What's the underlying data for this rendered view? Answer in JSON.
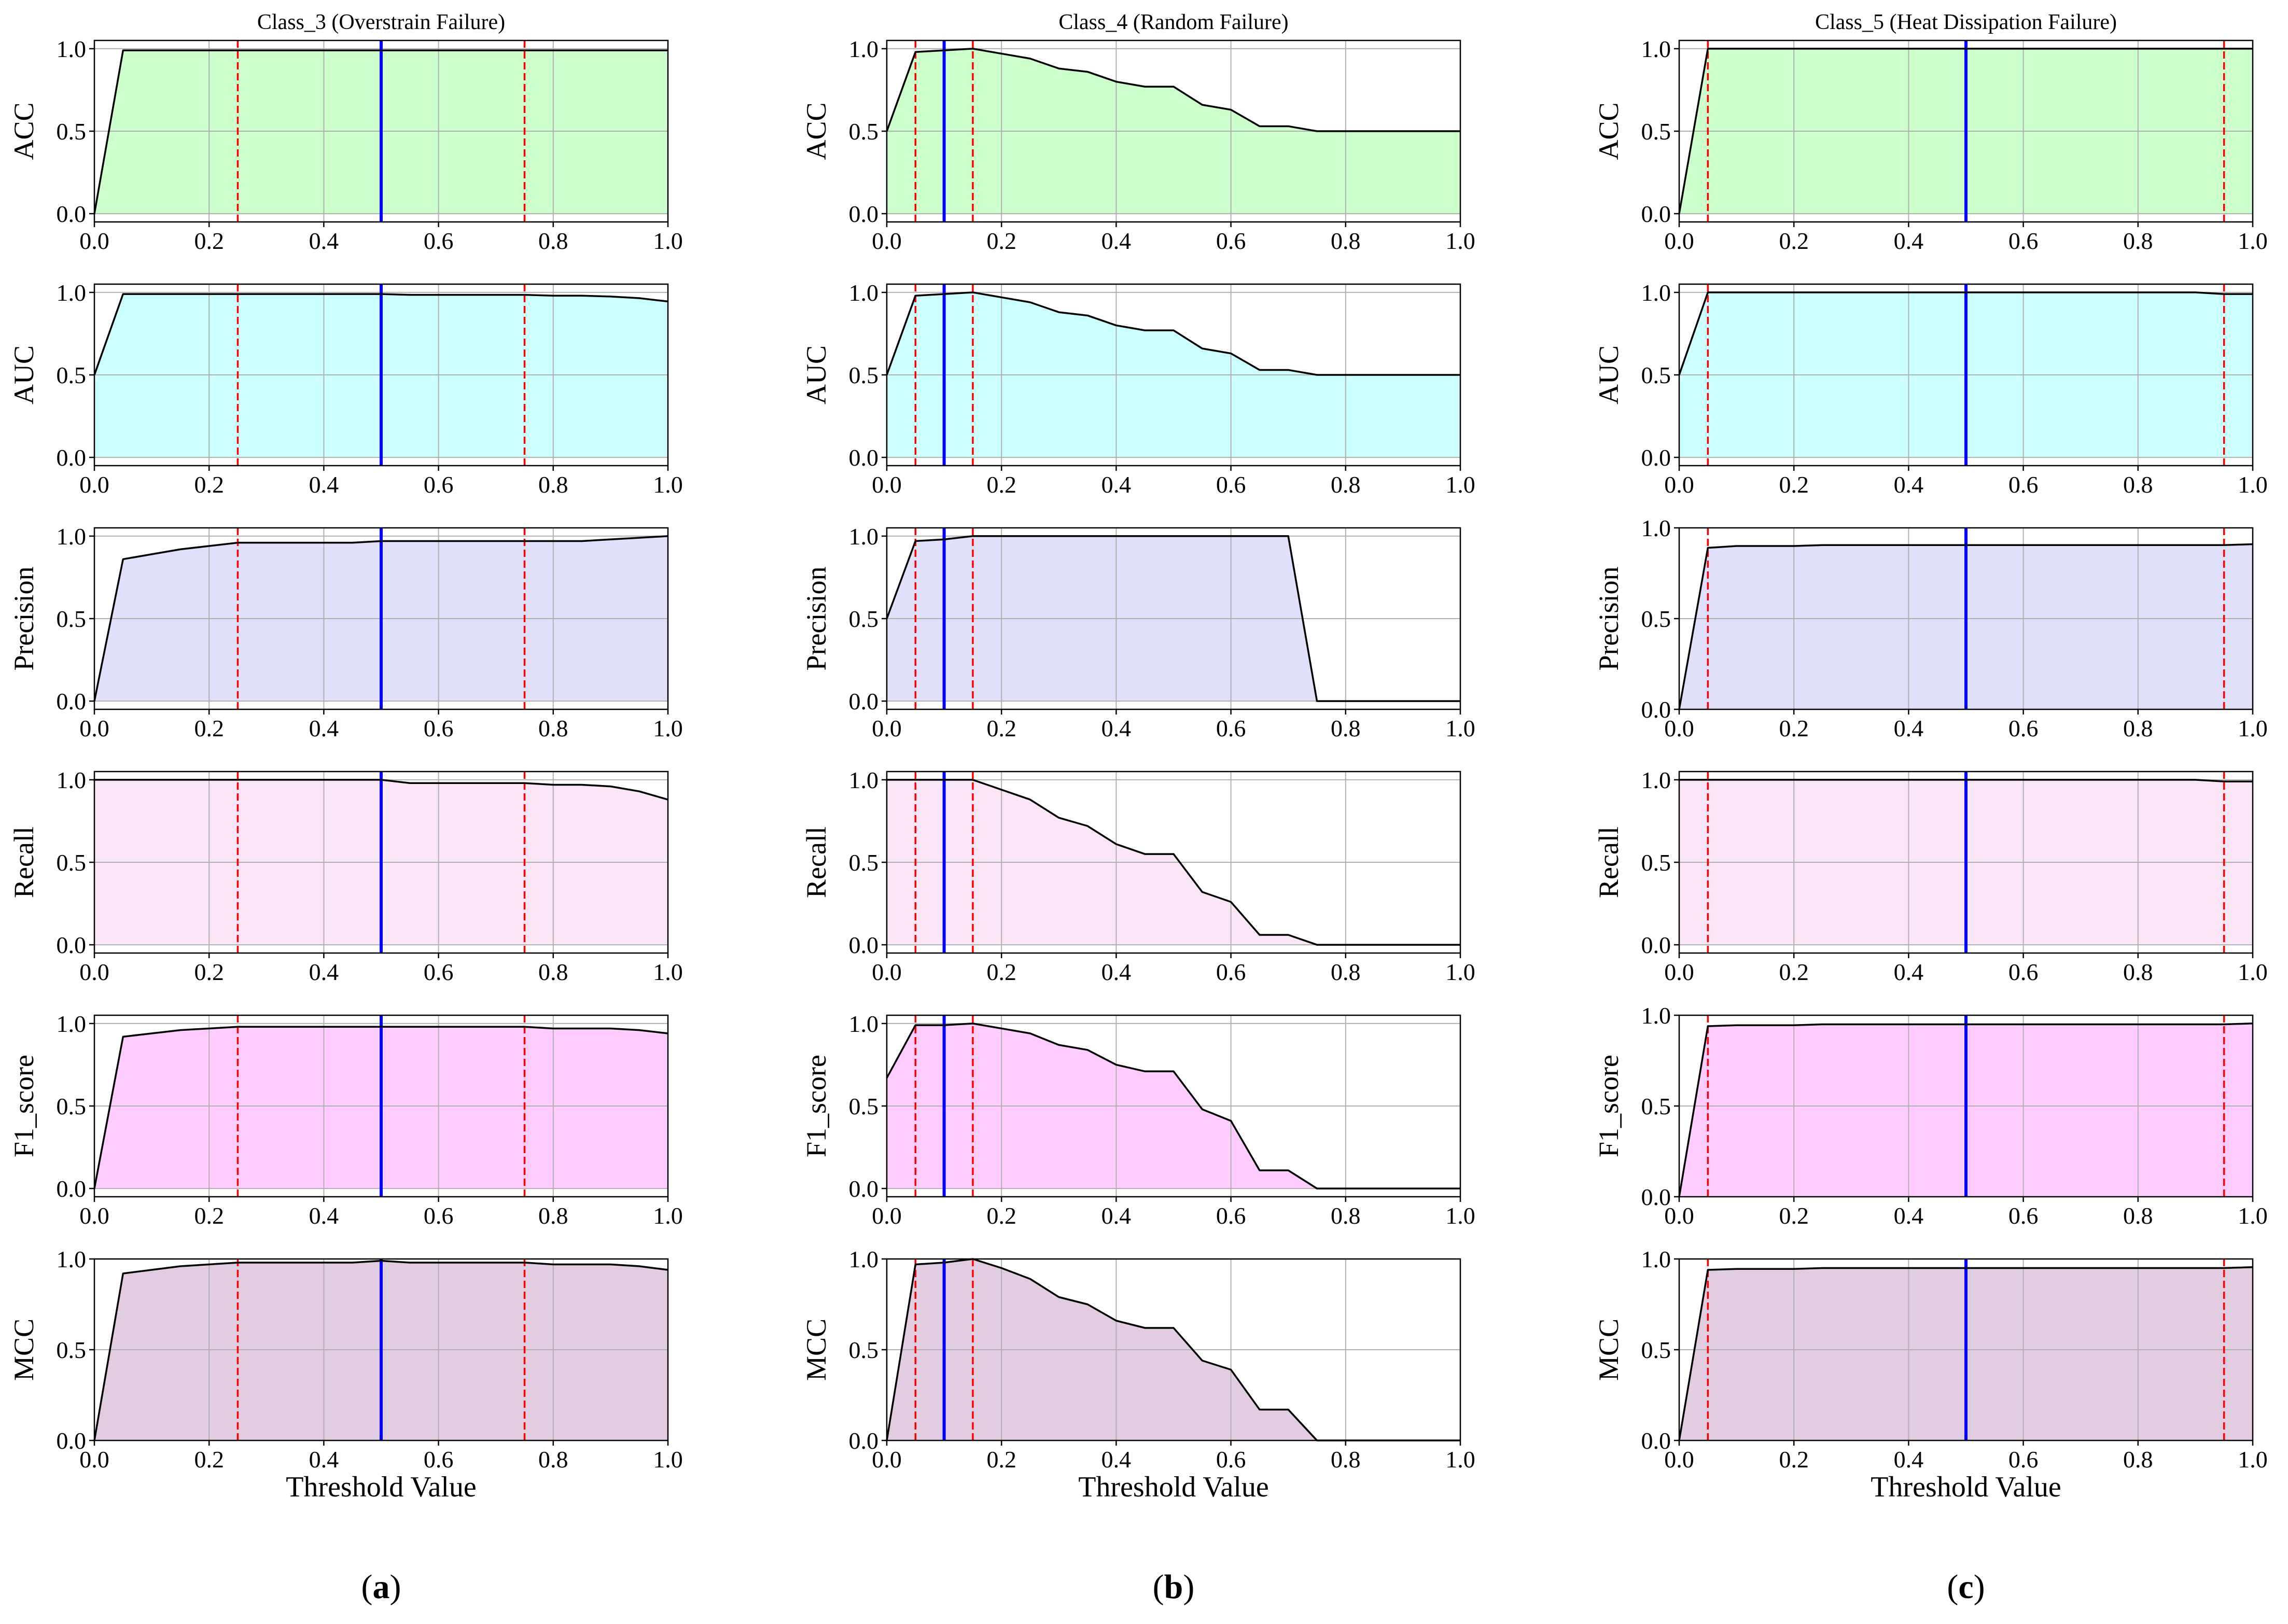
{
  "figure": {
    "xlabel": "Threshold Value",
    "panel_labels": [
      "(a)",
      "(b)",
      "(c)"
    ],
    "titles": [
      "Class_3 (Overstrain Failure)",
      "Class_4 (Random Failure)",
      "Class_5 (Heat Dissipation Failure)"
    ],
    "metrics": [
      "ACC",
      "AUC",
      "Precision",
      "Recall",
      "F1_score",
      "MCC"
    ]
  },
  "colors": {
    "ACC": "#ccffcc",
    "AUC": "#ccffff",
    "Precision": "#e0e0fa",
    "Recall": "#fbe6f7",
    "F1_score": "#ffccff",
    "MCC": "#e2cce2",
    "curve": "#000000",
    "best_threshold_line": "#0000ff",
    "range_line": "#ff0000",
    "grid": "#b0b0b0"
  },
  "chart_data": [
    {
      "type": "area",
      "title": "Class_3 (Overstrain Failure)",
      "xlabel": "Threshold Value",
      "x": [
        0,
        0.05,
        0.1,
        0.15,
        0.2,
        0.25,
        0.3,
        0.35,
        0.4,
        0.45,
        0.5,
        0.55,
        0.6,
        0.65,
        0.7,
        0.75,
        0.8,
        0.85,
        0.9,
        0.95,
        1.0
      ],
      "xlim": [
        0,
        1
      ],
      "xticks": [
        0.0,
        0.2,
        0.4,
        0.6,
        0.8,
        1.0
      ],
      "best_threshold": 0.5,
      "range_lines": [
        0.25,
        0.75
      ],
      "series": [
        {
          "name": "ACC",
          "ylim": [
            -0.05,
            1.05
          ],
          "yticks": [
            0.0,
            0.5,
            1.0
          ],
          "values": [
            0.0,
            0.99,
            0.99,
            0.99,
            0.99,
            0.99,
            0.99,
            0.99,
            0.99,
            0.99,
            0.99,
            0.99,
            0.99,
            0.99,
            0.99,
            0.99,
            0.99,
            0.99,
            0.99,
            0.99,
            0.99
          ]
        },
        {
          "name": "AUC",
          "ylim": [
            -0.05,
            1.05
          ],
          "yticks": [
            0.0,
            0.5,
            1.0
          ],
          "values": [
            0.5,
            0.99,
            0.99,
            0.99,
            0.99,
            0.99,
            0.99,
            0.99,
            0.99,
            0.99,
            0.99,
            0.985,
            0.985,
            0.985,
            0.985,
            0.985,
            0.98,
            0.98,
            0.975,
            0.965,
            0.945
          ]
        },
        {
          "name": "Precision",
          "ylim": [
            -0.05,
            1.05
          ],
          "yticks": [
            0.0,
            0.5,
            1.0
          ],
          "values": [
            0.0,
            0.86,
            0.89,
            0.92,
            0.94,
            0.96,
            0.96,
            0.96,
            0.96,
            0.96,
            0.97,
            0.97,
            0.97,
            0.97,
            0.97,
            0.97,
            0.97,
            0.97,
            0.98,
            0.99,
            1.0
          ]
        },
        {
          "name": "Recall",
          "ylim": [
            -0.05,
            1.05
          ],
          "yticks": [
            0.0,
            0.5,
            1.0
          ],
          "values": [
            1.0,
            1.0,
            1.0,
            1.0,
            1.0,
            1.0,
            1.0,
            1.0,
            1.0,
            1.0,
            1.0,
            0.98,
            0.98,
            0.98,
            0.98,
            0.98,
            0.97,
            0.97,
            0.96,
            0.93,
            0.88
          ]
        },
        {
          "name": "F1_score",
          "ylim": [
            -0.05,
            1.05
          ],
          "yticks": [
            0.0,
            0.5,
            1.0
          ],
          "values": [
            0.0,
            0.92,
            0.94,
            0.96,
            0.97,
            0.98,
            0.98,
            0.98,
            0.98,
            0.98,
            0.98,
            0.98,
            0.98,
            0.98,
            0.98,
            0.98,
            0.97,
            0.97,
            0.97,
            0.96,
            0.94
          ]
        },
        {
          "name": "MCC",
          "ylim": [
            0.0,
            1.0
          ],
          "yticks": [
            0.0,
            0.5,
            1.0
          ],
          "values": [
            0.0,
            0.92,
            0.94,
            0.96,
            0.97,
            0.98,
            0.98,
            0.98,
            0.98,
            0.98,
            0.99,
            0.98,
            0.98,
            0.98,
            0.98,
            0.98,
            0.97,
            0.97,
            0.97,
            0.96,
            0.94
          ]
        }
      ]
    },
    {
      "type": "area",
      "title": "Class_4 (Random Failure)",
      "xlabel": "Threshold Value",
      "x": [
        0,
        0.05,
        0.1,
        0.15,
        0.2,
        0.25,
        0.3,
        0.35,
        0.4,
        0.45,
        0.5,
        0.55,
        0.6,
        0.65,
        0.7,
        0.75,
        0.8,
        0.85,
        0.9,
        0.95,
        1.0
      ],
      "xlim": [
        0,
        1
      ],
      "xticks": [
        0.0,
        0.2,
        0.4,
        0.6,
        0.8,
        1.0
      ],
      "best_threshold": 0.1,
      "range_lines": [
        0.05,
        0.15
      ],
      "series": [
        {
          "name": "ACC",
          "ylim": [
            -0.05,
            1.05
          ],
          "yticks": [
            0.0,
            0.5,
            1.0
          ],
          "values": [
            0.5,
            0.98,
            0.99,
            1.0,
            0.97,
            0.94,
            0.88,
            0.86,
            0.8,
            0.77,
            0.77,
            0.66,
            0.63,
            0.53,
            0.53,
            0.5,
            0.5,
            0.5,
            0.5,
            0.5,
            0.5
          ]
        },
        {
          "name": "AUC",
          "ylim": [
            -0.05,
            1.05
          ],
          "yticks": [
            0.0,
            0.5,
            1.0
          ],
          "values": [
            0.5,
            0.98,
            0.99,
            1.0,
            0.97,
            0.94,
            0.88,
            0.86,
            0.8,
            0.77,
            0.77,
            0.66,
            0.63,
            0.53,
            0.53,
            0.5,
            0.5,
            0.5,
            0.5,
            0.5,
            0.5
          ]
        },
        {
          "name": "Precision",
          "ylim": [
            -0.05,
            1.05
          ],
          "yticks": [
            0.0,
            0.5,
            1.0
          ],
          "values": [
            0.5,
            0.97,
            0.98,
            1.0,
            1.0,
            1.0,
            1.0,
            1.0,
            1.0,
            1.0,
            1.0,
            1.0,
            1.0,
            1.0,
            1.0,
            0.0,
            0.0,
            0.0,
            0.0,
            0.0,
            0.0
          ]
        },
        {
          "name": "Recall",
          "ylim": [
            -0.05,
            1.05
          ],
          "yticks": [
            0.0,
            0.5,
            1.0
          ],
          "values": [
            1.0,
            1.0,
            1.0,
            1.0,
            0.94,
            0.88,
            0.77,
            0.72,
            0.61,
            0.55,
            0.55,
            0.32,
            0.26,
            0.06,
            0.06,
            0.0,
            0.0,
            0.0,
            0.0,
            0.0,
            0.0
          ]
        },
        {
          "name": "F1_score",
          "ylim": [
            -0.05,
            1.05
          ],
          "yticks": [
            0.0,
            0.5,
            1.0
          ],
          "values": [
            0.67,
            0.99,
            0.99,
            1.0,
            0.97,
            0.94,
            0.87,
            0.84,
            0.75,
            0.71,
            0.71,
            0.48,
            0.41,
            0.11,
            0.11,
            0.0,
            0.0,
            0.0,
            0.0,
            0.0,
            0.0
          ]
        },
        {
          "name": "MCC",
          "ylim": [
            0.0,
            1.0
          ],
          "yticks": [
            0.0,
            0.5,
            1.0
          ],
          "values": [
            0.0,
            0.97,
            0.98,
            1.0,
            0.95,
            0.89,
            0.79,
            0.75,
            0.66,
            0.62,
            0.62,
            0.44,
            0.39,
            0.17,
            0.17,
            0.0,
            0.0,
            0.0,
            0.0,
            0.0,
            0.0
          ]
        }
      ]
    },
    {
      "type": "area",
      "title": "Class_5 (Heat Dissipation Failure)",
      "xlabel": "Threshold Value",
      "x": [
        0,
        0.05,
        0.1,
        0.15,
        0.2,
        0.25,
        0.3,
        0.35,
        0.4,
        0.45,
        0.5,
        0.55,
        0.6,
        0.65,
        0.7,
        0.75,
        0.8,
        0.85,
        0.9,
        0.95,
        1.0
      ],
      "xlim": [
        0,
        1
      ],
      "xticks": [
        0.0,
        0.2,
        0.4,
        0.6,
        0.8,
        1.0
      ],
      "best_threshold": 0.5,
      "range_lines": [
        0.05,
        0.95
      ],
      "series": [
        {
          "name": "ACC",
          "ylim": [
            -0.05,
            1.05
          ],
          "yticks": [
            0.0,
            0.5,
            1.0
          ],
          "values": [
            0.0,
            1.0,
            1.0,
            1.0,
            1.0,
            1.0,
            1.0,
            1.0,
            1.0,
            1.0,
            1.0,
            1.0,
            1.0,
            1.0,
            1.0,
            1.0,
            1.0,
            1.0,
            1.0,
            1.0,
            1.0
          ]
        },
        {
          "name": "AUC",
          "ylim": [
            -0.05,
            1.05
          ],
          "yticks": [
            0.0,
            0.5,
            1.0
          ],
          "values": [
            0.5,
            1.0,
            1.0,
            1.0,
            1.0,
            1.0,
            1.0,
            1.0,
            1.0,
            1.0,
            1.0,
            1.0,
            1.0,
            1.0,
            1.0,
            1.0,
            1.0,
            1.0,
            1.0,
            0.99,
            0.99
          ]
        },
        {
          "name": "Precision",
          "ylim": [
            0.0,
            1.0
          ],
          "yticks": [
            0.0,
            0.5,
            1.0
          ],
          "values": [
            0.0,
            0.89,
            0.9,
            0.9,
            0.9,
            0.905,
            0.905,
            0.905,
            0.905,
            0.905,
            0.905,
            0.905,
            0.905,
            0.905,
            0.905,
            0.905,
            0.905,
            0.905,
            0.905,
            0.905,
            0.91
          ]
        },
        {
          "name": "Recall",
          "ylim": [
            -0.05,
            1.05
          ],
          "yticks": [
            0.0,
            0.5,
            1.0
          ],
          "values": [
            1.0,
            1.0,
            1.0,
            1.0,
            1.0,
            1.0,
            1.0,
            1.0,
            1.0,
            1.0,
            1.0,
            1.0,
            1.0,
            1.0,
            1.0,
            1.0,
            1.0,
            1.0,
            1.0,
            0.99,
            0.99
          ]
        },
        {
          "name": "F1_score",
          "ylim": [
            0.0,
            1.0
          ],
          "yticks": [
            0.0,
            0.5,
            1.0
          ],
          "values": [
            0.0,
            0.94,
            0.945,
            0.945,
            0.945,
            0.95,
            0.95,
            0.95,
            0.95,
            0.95,
            0.95,
            0.95,
            0.95,
            0.95,
            0.95,
            0.95,
            0.95,
            0.95,
            0.95,
            0.95,
            0.955
          ]
        },
        {
          "name": "MCC",
          "ylim": [
            0.0,
            1.0
          ],
          "yticks": [
            0.0,
            0.5,
            1.0
          ],
          "values": [
            0.0,
            0.94,
            0.945,
            0.945,
            0.945,
            0.95,
            0.95,
            0.95,
            0.95,
            0.95,
            0.95,
            0.95,
            0.95,
            0.95,
            0.95,
            0.95,
            0.95,
            0.95,
            0.95,
            0.95,
            0.955
          ]
        }
      ]
    }
  ]
}
